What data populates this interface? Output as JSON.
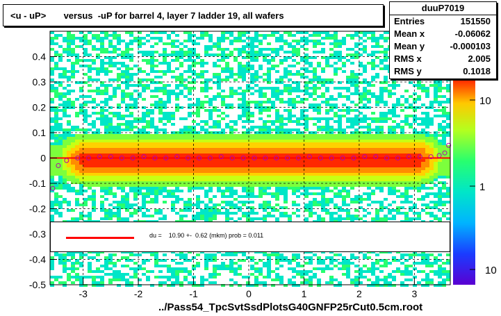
{
  "title": "<u - uP>       versus  -uP for barrel 4, layer 7 ladder 19, all wafers",
  "stats": {
    "name": "duuP7019",
    "rows": [
      {
        "label": "Entries",
        "value": "151550"
      },
      {
        "label": "Mean x",
        "value": "-0.06062"
      },
      {
        "label": "Mean y",
        "value": "-0.000103"
      },
      {
        "label": "RMS x",
        "value": "2.005"
      },
      {
        "label": "RMS y",
        "value": "0.1018"
      }
    ]
  },
  "legend": {
    "text": "du =    10.90 +-  0.62 (mkm) prob = 0.011",
    "line_color": "#ff0000"
  },
  "colors": {
    "fit_line": "#ff0000",
    "marker": "#b000b0"
  },
  "chart_data": {
    "type": "heatmap",
    "xlabel": "../Pass54_TpcSvtSsdPlotsG40GNFP25rCut0.5cm.root",
    "ylabel": "",
    "xlim": [
      -3.6,
      3.65
    ],
    "ylim": [
      -0.5,
      0.5
    ],
    "x_ticks": [
      "-3",
      "-2",
      "-1",
      "0",
      "1",
      "2",
      "3"
    ],
    "y_ticks": [
      "-0.5",
      "-0.4",
      "-0.3",
      "-0.2",
      "-0.1",
      "0",
      "0.1",
      "0.2",
      "0.3",
      "0.4"
    ],
    "colorbar_ticks": [
      "10",
      "1",
      "10"
    ],
    "colorbar_scale": "log",
    "grid": true,
    "profile": {
      "x": [
        -3.55,
        -3.45,
        -3.3,
        -3.1,
        -2.9,
        -2.7,
        -2.5,
        -2.3,
        -2.1,
        -1.9,
        -1.7,
        -1.5,
        -1.3,
        -1.1,
        -0.9,
        -0.7,
        -0.5,
        -0.3,
        -0.1,
        0.1,
        0.3,
        0.5,
        0.7,
        0.9,
        1.1,
        1.3,
        1.5,
        1.7,
        1.9,
        2.1,
        2.3,
        2.5,
        2.7,
        2.9,
        3.1,
        3.3,
        3.45,
        3.55,
        3.62
      ],
      "y": [
        -0.12,
        -0.03,
        -0.01,
        0.0,
        0.0,
        0.005,
        0.005,
        0.0,
        0.0,
        0.005,
        0.0,
        0.0,
        0.005,
        0.0,
        0.0,
        0.0,
        0.005,
        0.0,
        0.0,
        0.0,
        0.0,
        0.0,
        0.0,
        0.0,
        0.005,
        0.0,
        0.0,
        0.0,
        0.0,
        0.005,
        0.005,
        0.0,
        0.0,
        0.005,
        0.005,
        0.005,
        0.01,
        0.02,
        0.05
      ]
    },
    "fit": {
      "y": 0.0
    }
  }
}
